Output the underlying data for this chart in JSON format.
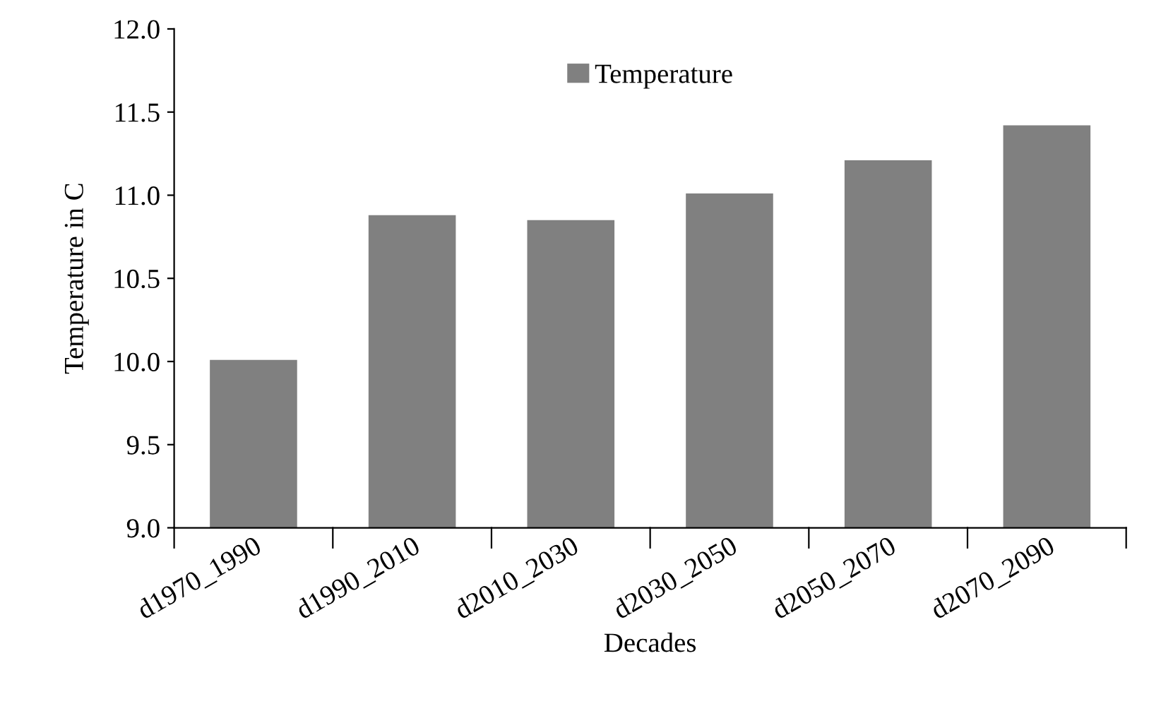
{
  "chart_data": {
    "type": "bar",
    "xlabel": "Decades",
    "ylabel": "Temperature in C",
    "categories": [
      "d1970_1990",
      "d1990_2010",
      "d2010_2030",
      "d2030_2050",
      "d2050_2070",
      "d2070_2090"
    ],
    "series": [
      {
        "name": "Temperature",
        "color": "#808080",
        "values": [
          10.01,
          10.88,
          10.85,
          11.01,
          11.21,
          11.42
        ]
      }
    ],
    "ylim": [
      9.0,
      12.0
    ],
    "yticks": [
      {
        "value": 9.0,
        "label": "9.0"
      },
      {
        "value": 9.5,
        "label": "9.5"
      },
      {
        "value": 10.0,
        "label": "10.0"
      },
      {
        "value": 10.5,
        "label": "10.5"
      },
      {
        "value": 11.0,
        "label": "11.0"
      },
      {
        "value": 11.5,
        "label": "11.5"
      },
      {
        "value": 12.0,
        "label": "12.0"
      }
    ],
    "grid": false,
    "legend": "top"
  }
}
